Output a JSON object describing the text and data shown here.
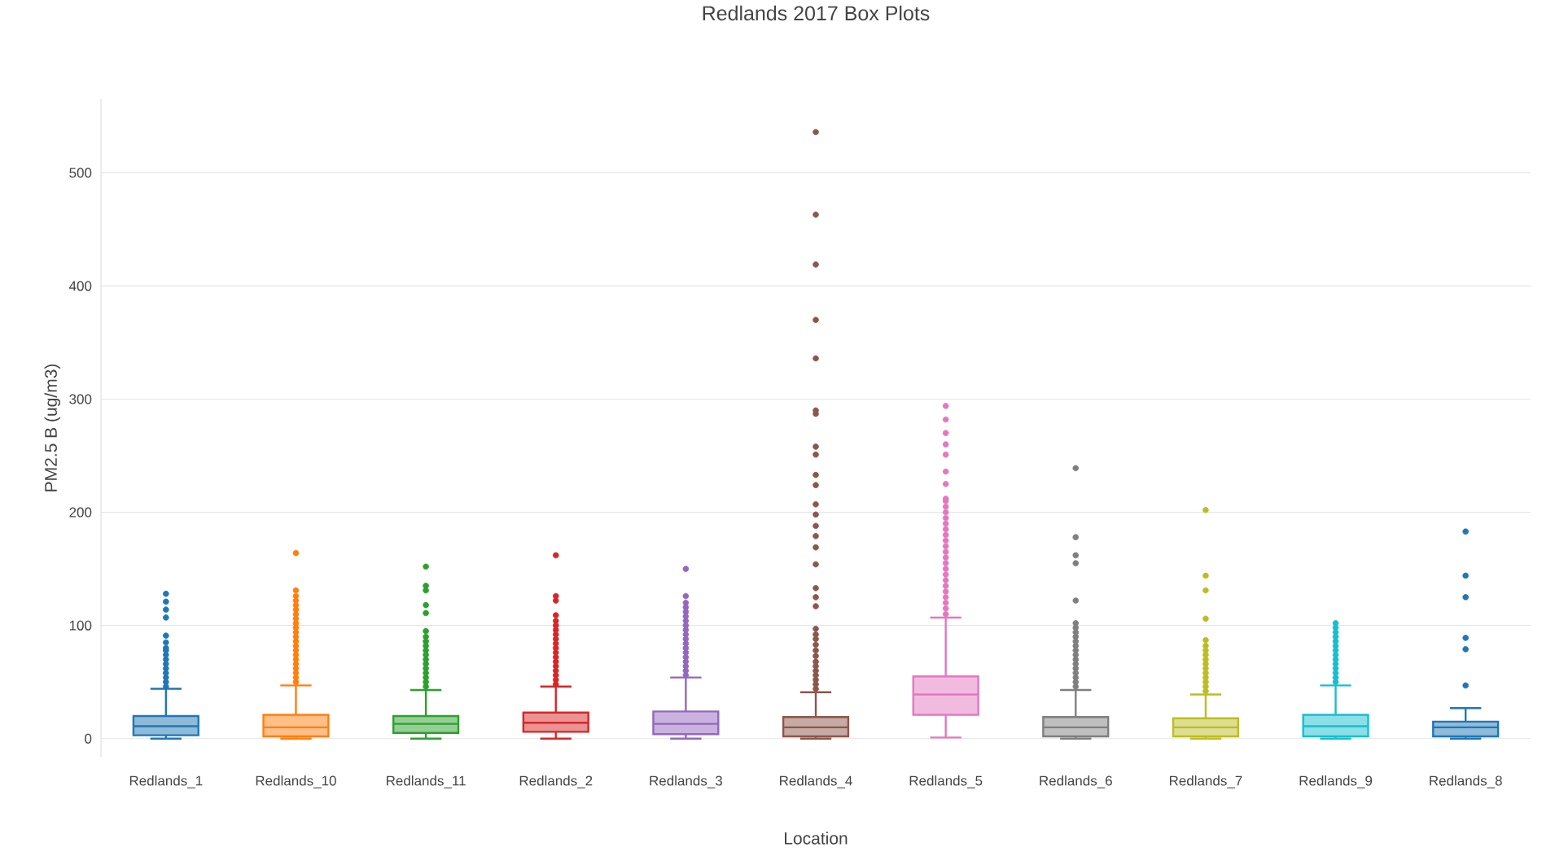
{
  "chart_data": {
    "type": "box",
    "title": "Redlands 2017 Box Plots",
    "xlabel": "Location",
    "ylabel": "PM2.5 B (ug/m3)",
    "categories": [
      "Redlands_1",
      "Redlands_10",
      "Redlands_11",
      "Redlands_2",
      "Redlands_3",
      "Redlands_4",
      "Redlands_5",
      "Redlands_6",
      "Redlands_7",
      "Redlands_9",
      "Redlands_8"
    ],
    "colors": [
      "#1f77b4",
      "#ff7f0e",
      "#2ca02c",
      "#d62728",
      "#9467bd",
      "#8c564b",
      "#e377c2",
      "#7f7f7f",
      "#bcbd22",
      "#17becf",
      "#1f77b4"
    ],
    "boxes": [
      {
        "low": 0,
        "q1": 3,
        "median": 11,
        "q3": 20,
        "high": 44,
        "outliers": [
          46,
          50,
          54,
          58,
          62,
          66,
          70,
          74,
          78,
          80,
          85,
          91,
          107,
          114,
          121,
          128
        ]
      },
      {
        "low": 0,
        "q1": 2,
        "median": 10,
        "q3": 21,
        "high": 47,
        "outliers": [
          50,
          54,
          58,
          62,
          66,
          70,
          74,
          78,
          82,
          86,
          90,
          94,
          98,
          102,
          106,
          110,
          114,
          118,
          122,
          126,
          131,
          164
        ]
      },
      {
        "low": 0,
        "q1": 5,
        "median": 13,
        "q3": 20,
        "high": 43,
        "outliers": [
          46,
          50,
          54,
          58,
          62,
          66,
          70,
          74,
          78,
          82,
          86,
          90,
          95,
          111,
          118,
          131,
          135,
          152
        ]
      },
      {
        "low": 0,
        "q1": 6,
        "median": 14,
        "q3": 23,
        "high": 46,
        "outliers": [
          48,
          52,
          56,
          60,
          64,
          68,
          72,
          76,
          80,
          84,
          88,
          92,
          96,
          100,
          104,
          109,
          122,
          126,
          162
        ]
      },
      {
        "low": 0,
        "q1": 4,
        "median": 13,
        "q3": 24,
        "high": 54,
        "outliers": [
          56,
          60,
          64,
          68,
          72,
          76,
          80,
          84,
          88,
          92,
          96,
          100,
          104,
          108,
          112,
          116,
          120,
          126,
          150
        ]
      },
      {
        "low": 0,
        "q1": 2,
        "median": 10,
        "q3": 19,
        "high": 41,
        "outliers": [
          44,
          48,
          52,
          56,
          60,
          64,
          68,
          73,
          78,
          83,
          88,
          92,
          97,
          117,
          125,
          133,
          154,
          169,
          179,
          188,
          198,
          207,
          224,
          233,
          251,
          258,
          287,
          290,
          336,
          370,
          419,
          463,
          536
        ]
      },
      {
        "low": 1,
        "q1": 21,
        "median": 39,
        "q3": 55,
        "high": 107,
        "outliers": [
          110,
          115,
          120,
          125,
          130,
          135,
          140,
          145,
          150,
          155,
          160,
          165,
          170,
          175,
          180,
          185,
          190,
          195,
          200,
          205,
          210,
          212,
          225,
          236,
          251,
          260,
          270,
          282,
          294
        ]
      },
      {
        "low": 0,
        "q1": 2,
        "median": 10,
        "q3": 19,
        "high": 43,
        "outliers": [
          46,
          50,
          54,
          58,
          62,
          66,
          70,
          74,
          78,
          82,
          86,
          90,
          94,
          98,
          102,
          122,
          155,
          162,
          178,
          239
        ]
      },
      {
        "low": 0,
        "q1": 2,
        "median": 10,
        "q3": 18,
        "high": 39,
        "outliers": [
          42,
          46,
          50,
          54,
          58,
          62,
          66,
          70,
          74,
          78,
          82,
          87,
          106,
          131,
          144,
          202
        ]
      },
      {
        "low": 0,
        "q1": 2,
        "median": 11,
        "q3": 21,
        "high": 47,
        "outliers": [
          50,
          54,
          58,
          62,
          66,
          70,
          74,
          78,
          82,
          86,
          90,
          94,
          98,
          102
        ]
      },
      {
        "low": 0,
        "q1": 2,
        "median": 10,
        "q3": 15,
        "high": 27,
        "outliers": [
          47,
          79,
          89,
          125,
          144,
          183
        ]
      }
    ],
    "ylim": [
      -16,
      565
    ],
    "yticks": [
      0,
      100,
      200,
      300,
      400,
      500
    ],
    "grid": "y",
    "marker": "circle"
  }
}
